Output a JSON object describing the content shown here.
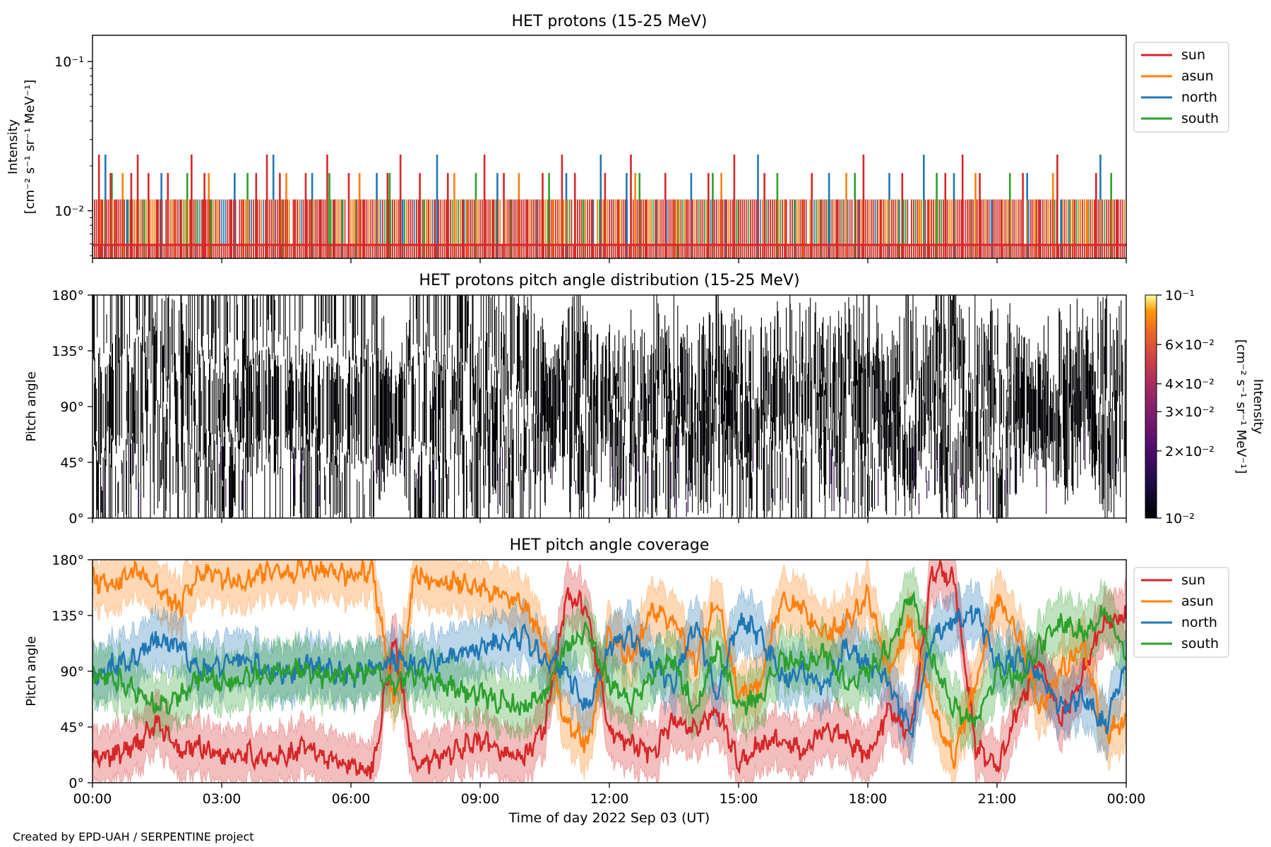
{
  "figure": {
    "credit": "Created by EPD-UAH / SERPENTINE project",
    "xlabel": "Time of day 2022 Sep 03 (UT)"
  },
  "colors": {
    "sun": "#d62728",
    "asun": "#ff7f0e",
    "north": "#1f77b4",
    "south": "#2ca02c"
  },
  "chart_data": [
    {
      "type": "line",
      "title": "HET protons (15-25 MeV)",
      "ylabel_line1": "Intensity",
      "ylabel_line2": "[cm⁻² s⁻¹ sr⁻¹ MeV⁻¹]",
      "yscale": "log",
      "ylim": [
        0.0048,
        0.15
      ],
      "yticks": [
        {
          "value": 0.1,
          "label": "10⁻¹"
        },
        {
          "value": 0.01,
          "label": "10⁻²"
        }
      ],
      "xlim_hours": [
        0,
        24
      ],
      "legend": {
        "placement": "right-outside",
        "entries": [
          "sun",
          "asun",
          "north",
          "south"
        ]
      },
      "series": [
        {
          "name": "sun",
          "baseline": 0.0059,
          "levels": [
            0.0119,
            0.0179,
            0.0238
          ],
          "spike_hours": [
            0.15,
            0.22,
            0.42,
            0.55,
            0.9,
            1.05,
            1.3,
            1.5,
            1.75,
            2.05,
            2.3,
            2.55,
            2.6,
            3.2,
            3.8,
            4.05,
            4.35,
            4.7,
            4.95,
            5.3,
            5.45,
            5.6,
            5.95,
            6.3,
            6.85,
            7.15,
            7.6,
            7.95,
            8.25,
            8.6,
            9.1,
            9.3,
            9.55,
            10.1,
            10.45,
            10.9,
            11.2,
            11.6,
            11.9,
            12.2,
            12.5,
            12.85,
            13.3,
            13.8,
            14.3,
            14.9,
            15.6,
            16.1,
            16.7,
            17.3,
            17.9,
            18.3,
            18.8,
            19.4,
            19.8,
            20.2,
            20.6,
            21.1,
            21.6,
            22.0,
            22.4,
            22.8,
            23.3,
            23.8
          ]
        },
        {
          "name": "asun",
          "baseline": 0.0059,
          "levels": [
            0.0119,
            0.0179
          ],
          "spike_hours": [
            0.7,
            1.9,
            2.7,
            3.5,
            4.5,
            5.05,
            6.2,
            7.8,
            8.4,
            8.7,
            9.9,
            10.7,
            12.6,
            13.5,
            14.6,
            16.5,
            17.5,
            19.2,
            20.5,
            21.9,
            22.3,
            23.1
          ]
        },
        {
          "name": "north",
          "baseline": 0.0059,
          "levels": [
            0.0119,
            0.0179,
            0.0238
          ],
          "spike_hours": [
            0.3,
            0.8,
            1.6,
            2.4,
            3.3,
            4.2,
            5.1,
            5.8,
            6.6,
            7.2,
            8.0,
            8.7,
            9.4,
            10.3,
            11.0,
            11.8,
            12.4,
            13.1,
            13.9,
            14.7,
            15.45,
            16.3,
            17.1,
            17.8,
            18.5,
            19.3,
            20.0,
            20.9,
            21.7,
            22.5,
            23.4
          ]
        },
        {
          "name": "south",
          "baseline": 0.0059,
          "levels": [
            0.0119,
            0.0179
          ],
          "spike_hours": [
            0.45,
            1.2,
            2.2,
            2.75,
            3.6,
            4.4,
            5.5,
            6.1,
            6.9,
            7.7,
            8.9,
            9.7,
            10.6,
            11.4,
            12.7,
            13.6,
            14.4,
            15.0,
            15.9,
            16.9,
            17.7,
            18.7,
            19.6,
            20.4,
            21.3,
            22.7,
            23.65
          ]
        }
      ]
    },
    {
      "type": "heatmap",
      "title": "HET protons pitch angle distribution (15-25 MeV)",
      "ylabel": "Pitch angle",
      "ylim": [
        0,
        180
      ],
      "yticks": [
        "0°",
        "45°",
        "90°",
        "135°",
        "180°"
      ],
      "xlim_hours": [
        0,
        24
      ],
      "colorscale": "inferno",
      "colorbar": {
        "label_line1": "Intensity",
        "label_line2": "[cm⁻² s⁻¹ sr⁻¹ MeV⁻¹]",
        "scale": "log",
        "range": [
          0.01,
          0.1
        ],
        "ticks": [
          {
            "value": 0.1,
            "label": "10⁻¹"
          },
          {
            "value": 0.06,
            "label": "6×10⁻²"
          },
          {
            "value": 0.04,
            "label": "4×10⁻²"
          },
          {
            "value": 0.03,
            "label": "3×10⁻²"
          },
          {
            "value": 0.02,
            "label": "2×10⁻²"
          },
          {
            "value": 0.01,
            "label": "10⁻²"
          }
        ]
      },
      "note_values": "sparse counts at ~0.01 (near black) tracing the four telescope pitch-angle tracks"
    },
    {
      "type": "line",
      "title": "HET pitch angle coverage",
      "ylabel": "Pitch angle",
      "ylim": [
        0,
        180
      ],
      "yticks": [
        "0°",
        "45°",
        "90°",
        "135°",
        "180°"
      ],
      "xlim_hours": [
        0,
        24
      ],
      "xticks": [
        "00:00",
        "03:00",
        "06:00",
        "09:00",
        "12:00",
        "15:00",
        "18:00",
        "21:00",
        "00:00"
      ],
      "legend": {
        "placement": "right-outside",
        "entries": [
          "sun",
          "asun",
          "north",
          "south"
        ]
      },
      "band_halfwidth_deg": 22,
      "series": [
        {
          "name": "sun",
          "hours": [
            0,
            0.5,
            1,
            1.5,
            2,
            2.5,
            3,
            3.5,
            4,
            4.5,
            5,
            5.5,
            6,
            6.5,
            7,
            7.5,
            8,
            8.5,
            9,
            9.5,
            10,
            10.5,
            11,
            11.5,
            12,
            12.5,
            13,
            13.5,
            14,
            14.5,
            15,
            15.5,
            16,
            16.5,
            17,
            17.5,
            18,
            18.5,
            19,
            19.5,
            20,
            20.5,
            21,
            21.5,
            22,
            22.5,
            23,
            23.5,
            24
          ],
          "values": [
            18,
            22,
            30,
            48,
            25,
            30,
            22,
            25,
            18,
            22,
            28,
            20,
            15,
            10,
            115,
            10,
            20,
            28,
            32,
            25,
            20,
            45,
            150,
            140,
            40,
            30,
            25,
            50,
            40,
            60,
            15,
            30,
            35,
            25,
            45,
            35,
            20,
            60,
            40,
            170,
            165,
            30,
            10,
            60,
            100,
            50,
            90,
            130,
            135
          ]
        },
        {
          "name": "asun",
          "hours": [
            0,
            0.5,
            1,
            1.5,
            2,
            2.5,
            3,
            3.5,
            4,
            4.5,
            5,
            5.5,
            6,
            6.5,
            7,
            7.5,
            8,
            8.5,
            9,
            9.5,
            10,
            10.5,
            11,
            11.5,
            12,
            12.5,
            13,
            13.5,
            14,
            14.5,
            15,
            15.5,
            16,
            16.5,
            17,
            17.5,
            18,
            18.5,
            19,
            19.5,
            20,
            20.5,
            21,
            21.5,
            22,
            22.5,
            23,
            23.5,
            24
          ],
          "values": [
            165,
            160,
            170,
            160,
            140,
            170,
            165,
            160,
            172,
            168,
            175,
            170,
            168,
            172,
            60,
            170,
            160,
            162,
            158,
            150,
            145,
            110,
            50,
            30,
            120,
            100,
            140,
            130,
            95,
            150,
            70,
            80,
            150,
            140,
            120,
            130,
            150,
            90,
            130,
            60,
            20,
            80,
            150,
            120,
            60,
            90,
            110,
            40,
            50
          ]
        },
        {
          "name": "north",
          "hours": [
            0,
            0.5,
            1,
            1.5,
            2,
            2.5,
            3,
            3.5,
            4,
            4.5,
            5,
            5.5,
            6,
            6.5,
            7,
            7.5,
            8,
            8.5,
            9,
            9.5,
            10,
            10.5,
            11,
            11.5,
            12,
            12.5,
            13,
            13.5,
            14,
            14.5,
            15,
            15.5,
            16,
            16.5,
            17,
            17.5,
            18,
            18.5,
            19,
            19.5,
            20,
            20.5,
            21,
            21.5,
            22,
            22.5,
            23,
            23.5,
            24
          ],
          "values": [
            85,
            95,
            100,
            115,
            110,
            90,
            95,
            100,
            92,
            88,
            95,
            90,
            85,
            90,
            100,
            95,
            98,
            102,
            108,
            112,
            118,
            100,
            90,
            60,
            110,
            120,
            95,
            80,
            130,
            70,
            130,
            120,
            85,
            90,
            75,
            110,
            95,
            80,
            40,
            120,
            130,
            140,
            95,
            100,
            85,
            60,
            70,
            45,
            95
          ]
        },
        {
          "name": "south",
          "hours": [
            0,
            0.5,
            1,
            1.5,
            2,
            2.5,
            3,
            3.5,
            4,
            4.5,
            5,
            5.5,
            6,
            6.5,
            7,
            7.5,
            8,
            8.5,
            9,
            9.5,
            10,
            10.5,
            11,
            11.5,
            12,
            12.5,
            13,
            13.5,
            14,
            14.5,
            15,
            15.5,
            16,
            16.5,
            17,
            17.5,
            18,
            18.5,
            19,
            19.5,
            20,
            20.5,
            21,
            21.5,
            22,
            22.5,
            23,
            23.5,
            24
          ],
          "values": [
            90,
            85,
            75,
            60,
            70,
            85,
            80,
            85,
            88,
            92,
            90,
            85,
            88,
            90,
            80,
            88,
            82,
            75,
            70,
            65,
            60,
            70,
            110,
            120,
            80,
            65,
            90,
            100,
            55,
            110,
            60,
            70,
            100,
            95,
            105,
            80,
            90,
            110,
            150,
            100,
            60,
            50,
            90,
            85,
            110,
            130,
            120,
            140,
            100
          ]
        }
      ]
    }
  ]
}
